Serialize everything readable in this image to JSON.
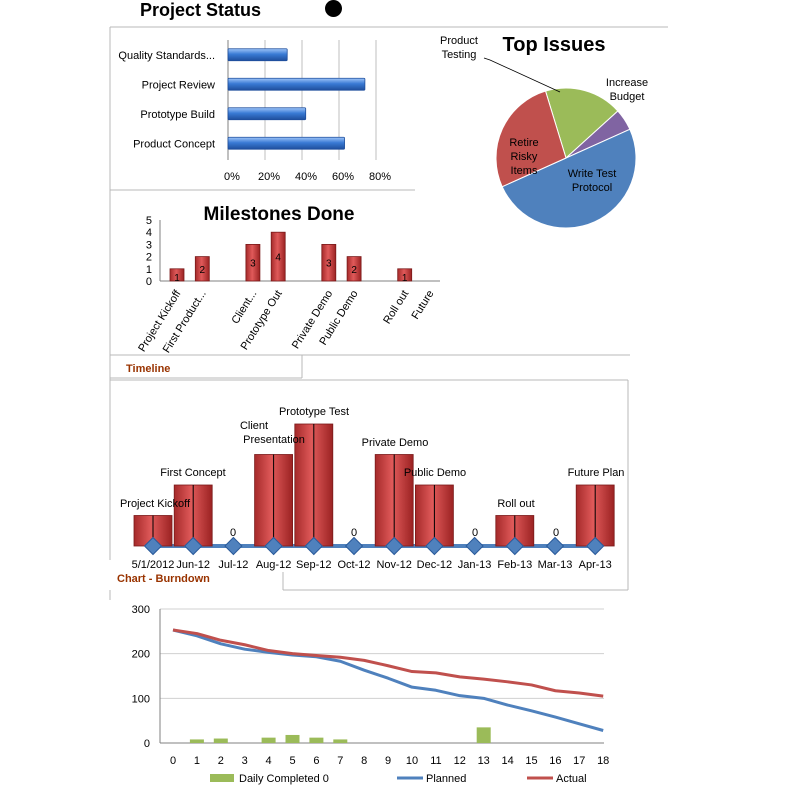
{
  "page": {
    "title": "Project Status",
    "status_dot_color": "#000000",
    "timeline_tab": "Timeline",
    "burndown_tab": "Chart - Burndown"
  },
  "chart_data": [
    {
      "id": "progress",
      "type": "bar",
      "orientation": "horizontal",
      "categories": [
        "Quality Standards...",
        "Project Review",
        "Prototype Build",
        "Product Concept"
      ],
      "values": [
        32,
        74,
        42,
        63
      ],
      "xlim": [
        0,
        80
      ],
      "tick_labels": [
        "0%",
        "20%",
        "40%",
        "60%",
        "80%"
      ],
      "grid": true,
      "color": "#3a7bd5"
    },
    {
      "id": "issues",
      "type": "pie",
      "title": "Top Issues",
      "slices": [
        {
          "label": "Product Testing",
          "value": 18,
          "color": "#9bbb59"
        },
        {
          "label": "Increase Budget",
          "value": 5,
          "color": "#8064a2"
        },
        {
          "label": "Write Test Protocol",
          "value": 50,
          "color": "#4f81bd"
        },
        {
          "label": "Retire Risky Items",
          "value": 27,
          "color": "#c0504d"
        }
      ]
    },
    {
      "id": "milestones",
      "type": "bar",
      "title": "Milestones Done",
      "categories": [
        "Project Kickoff",
        "First Product...",
        "",
        "Client...",
        "Prototype Out",
        "",
        "Private Demo",
        "Public Demo",
        "",
        "Roll out",
        "Future"
      ],
      "values": [
        1,
        2,
        null,
        3,
        4,
        null,
        3,
        2,
        null,
        1,
        null
      ],
      "ylim": [
        0,
        5
      ],
      "y_ticks": [
        "0",
        "1",
        "2",
        "3",
        "4",
        "5"
      ],
      "color": "#c0504d"
    },
    {
      "id": "timeline",
      "type": "bar",
      "categories": [
        "5/1/2012",
        "Jun-12",
        "Jul-12",
        "Aug-12",
        "Sep-12",
        "Oct-12",
        "Nov-12",
        "Dec-12",
        "Jan-13",
        "Feb-13",
        "Mar-13",
        "Apr-13"
      ],
      "values": [
        1,
        2,
        0,
        3,
        4,
        0,
        3,
        2,
        0,
        1,
        0,
        2
      ],
      "labels": [
        "Project Kickoff",
        "First Concept",
        "0",
        "Client Presentation",
        "Prototype Test",
        "0",
        "Private Demo",
        "Public Demo",
        "0",
        "Roll out",
        "0",
        "Future Plan"
      ],
      "color": "#c0504d",
      "marker_color": "#4f81bd"
    },
    {
      "id": "burndown",
      "type": "line",
      "x": [
        0,
        1,
        2,
        3,
        4,
        5,
        6,
        7,
        8,
        9,
        10,
        11,
        12,
        13,
        14,
        15,
        16,
        17,
        18
      ],
      "ylim": [
        0,
        300
      ],
      "y_ticks": [
        "0",
        "100",
        "200",
        "300"
      ],
      "grid": true,
      "legend_position": "bottom",
      "series": [
        {
          "name": "Daily Completed 0",
          "kind": "bar",
          "color": "#9bbb59",
          "values": [
            0,
            8,
            10,
            0,
            12,
            18,
            12,
            8,
            0,
            0,
            0,
            0,
            0,
            35,
            0,
            0,
            0,
            0,
            0
          ]
        },
        {
          "name": "Planned",
          "kind": "line",
          "color": "#4f81bd",
          "values": [
            253,
            240,
            222,
            210,
            203,
            197,
            193,
            183,
            163,
            145,
            125,
            118,
            106,
            100,
            85,
            72,
            58,
            43,
            28
          ]
        },
        {
          "name": "Actual",
          "kind": "line",
          "color": "#c0504d",
          "values": [
            253,
            245,
            230,
            220,
            207,
            200,
            196,
            192,
            185,
            173,
            160,
            157,
            148,
            143,
            137,
            130,
            117,
            112,
            105
          ]
        }
      ]
    }
  ]
}
